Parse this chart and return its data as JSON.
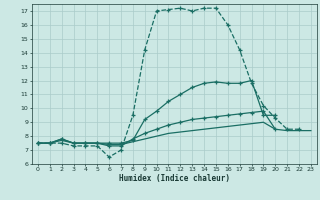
{
  "xlabel": "Humidex (Indice chaleur)",
  "ylabel": "",
  "bg_color": "#cce8e4",
  "grid_color": "#aaccca",
  "line_color": "#1a6e64",
  "xlim": [
    -0.5,
    23.5
  ],
  "ylim": [
    6,
    17.5
  ],
  "yticks": [
    6,
    7,
    8,
    9,
    10,
    11,
    12,
    13,
    14,
    15,
    16,
    17
  ],
  "xticks": [
    0,
    1,
    2,
    3,
    4,
    5,
    6,
    7,
    8,
    9,
    10,
    11,
    12,
    13,
    14,
    15,
    16,
    17,
    18,
    19,
    20,
    21,
    22,
    23
  ],
  "series": [
    {
      "x": [
        0,
        1,
        2,
        3,
        4,
        5,
        6,
        7,
        8,
        9,
        10,
        11,
        12,
        13,
        14,
        15,
        16,
        17,
        18,
        19,
        20,
        21,
        22
      ],
      "y": [
        7.5,
        7.5,
        7.5,
        7.3,
        7.3,
        7.3,
        6.5,
        7.0,
        9.5,
        14.2,
        17.0,
        17.1,
        17.2,
        17.0,
        17.2,
        17.2,
        16.0,
        14.2,
        11.8,
        10.2,
        9.3,
        8.5,
        8.5
      ],
      "marker": "+",
      "markersize": 3.5,
      "linestyle": "--",
      "linewidth": 0.9
    },
    {
      "x": [
        0,
        1,
        2,
        3,
        4,
        5,
        6,
        7,
        8,
        9,
        10,
        11,
        12,
        13,
        14,
        15,
        16,
        17,
        18,
        19,
        20
      ],
      "y": [
        7.5,
        7.5,
        7.8,
        7.5,
        7.5,
        7.5,
        7.5,
        7.5,
        7.7,
        9.2,
        9.8,
        10.5,
        11.0,
        11.5,
        11.8,
        11.9,
        11.8,
        11.8,
        12.0,
        9.5,
        9.5
      ],
      "marker": "+",
      "markersize": 3.5,
      "linestyle": "-",
      "linewidth": 0.9
    },
    {
      "x": [
        0,
        1,
        2,
        3,
        4,
        5,
        6,
        7,
        8,
        9,
        10,
        11,
        12,
        13,
        14,
        15,
        16,
        17,
        18,
        19,
        20
      ],
      "y": [
        7.5,
        7.5,
        7.8,
        7.5,
        7.5,
        7.5,
        7.3,
        7.3,
        7.8,
        8.2,
        8.5,
        8.8,
        9.0,
        9.2,
        9.3,
        9.4,
        9.5,
        9.6,
        9.7,
        9.8,
        8.5
      ],
      "marker": "+",
      "markersize": 3.5,
      "linestyle": "-",
      "linewidth": 0.9
    },
    {
      "x": [
        0,
        1,
        2,
        3,
        4,
        5,
        6,
        7,
        8,
        9,
        10,
        11,
        12,
        13,
        14,
        15,
        16,
        17,
        18,
        19,
        20,
        21,
        22,
        23
      ],
      "y": [
        7.5,
        7.5,
        7.7,
        7.5,
        7.5,
        7.5,
        7.4,
        7.4,
        7.6,
        7.8,
        8.0,
        8.2,
        8.3,
        8.4,
        8.5,
        8.6,
        8.7,
        8.8,
        8.9,
        9.0,
        8.5,
        8.4,
        8.4,
        8.4
      ],
      "marker": null,
      "markersize": 0,
      "linestyle": "-",
      "linewidth": 0.9
    }
  ]
}
